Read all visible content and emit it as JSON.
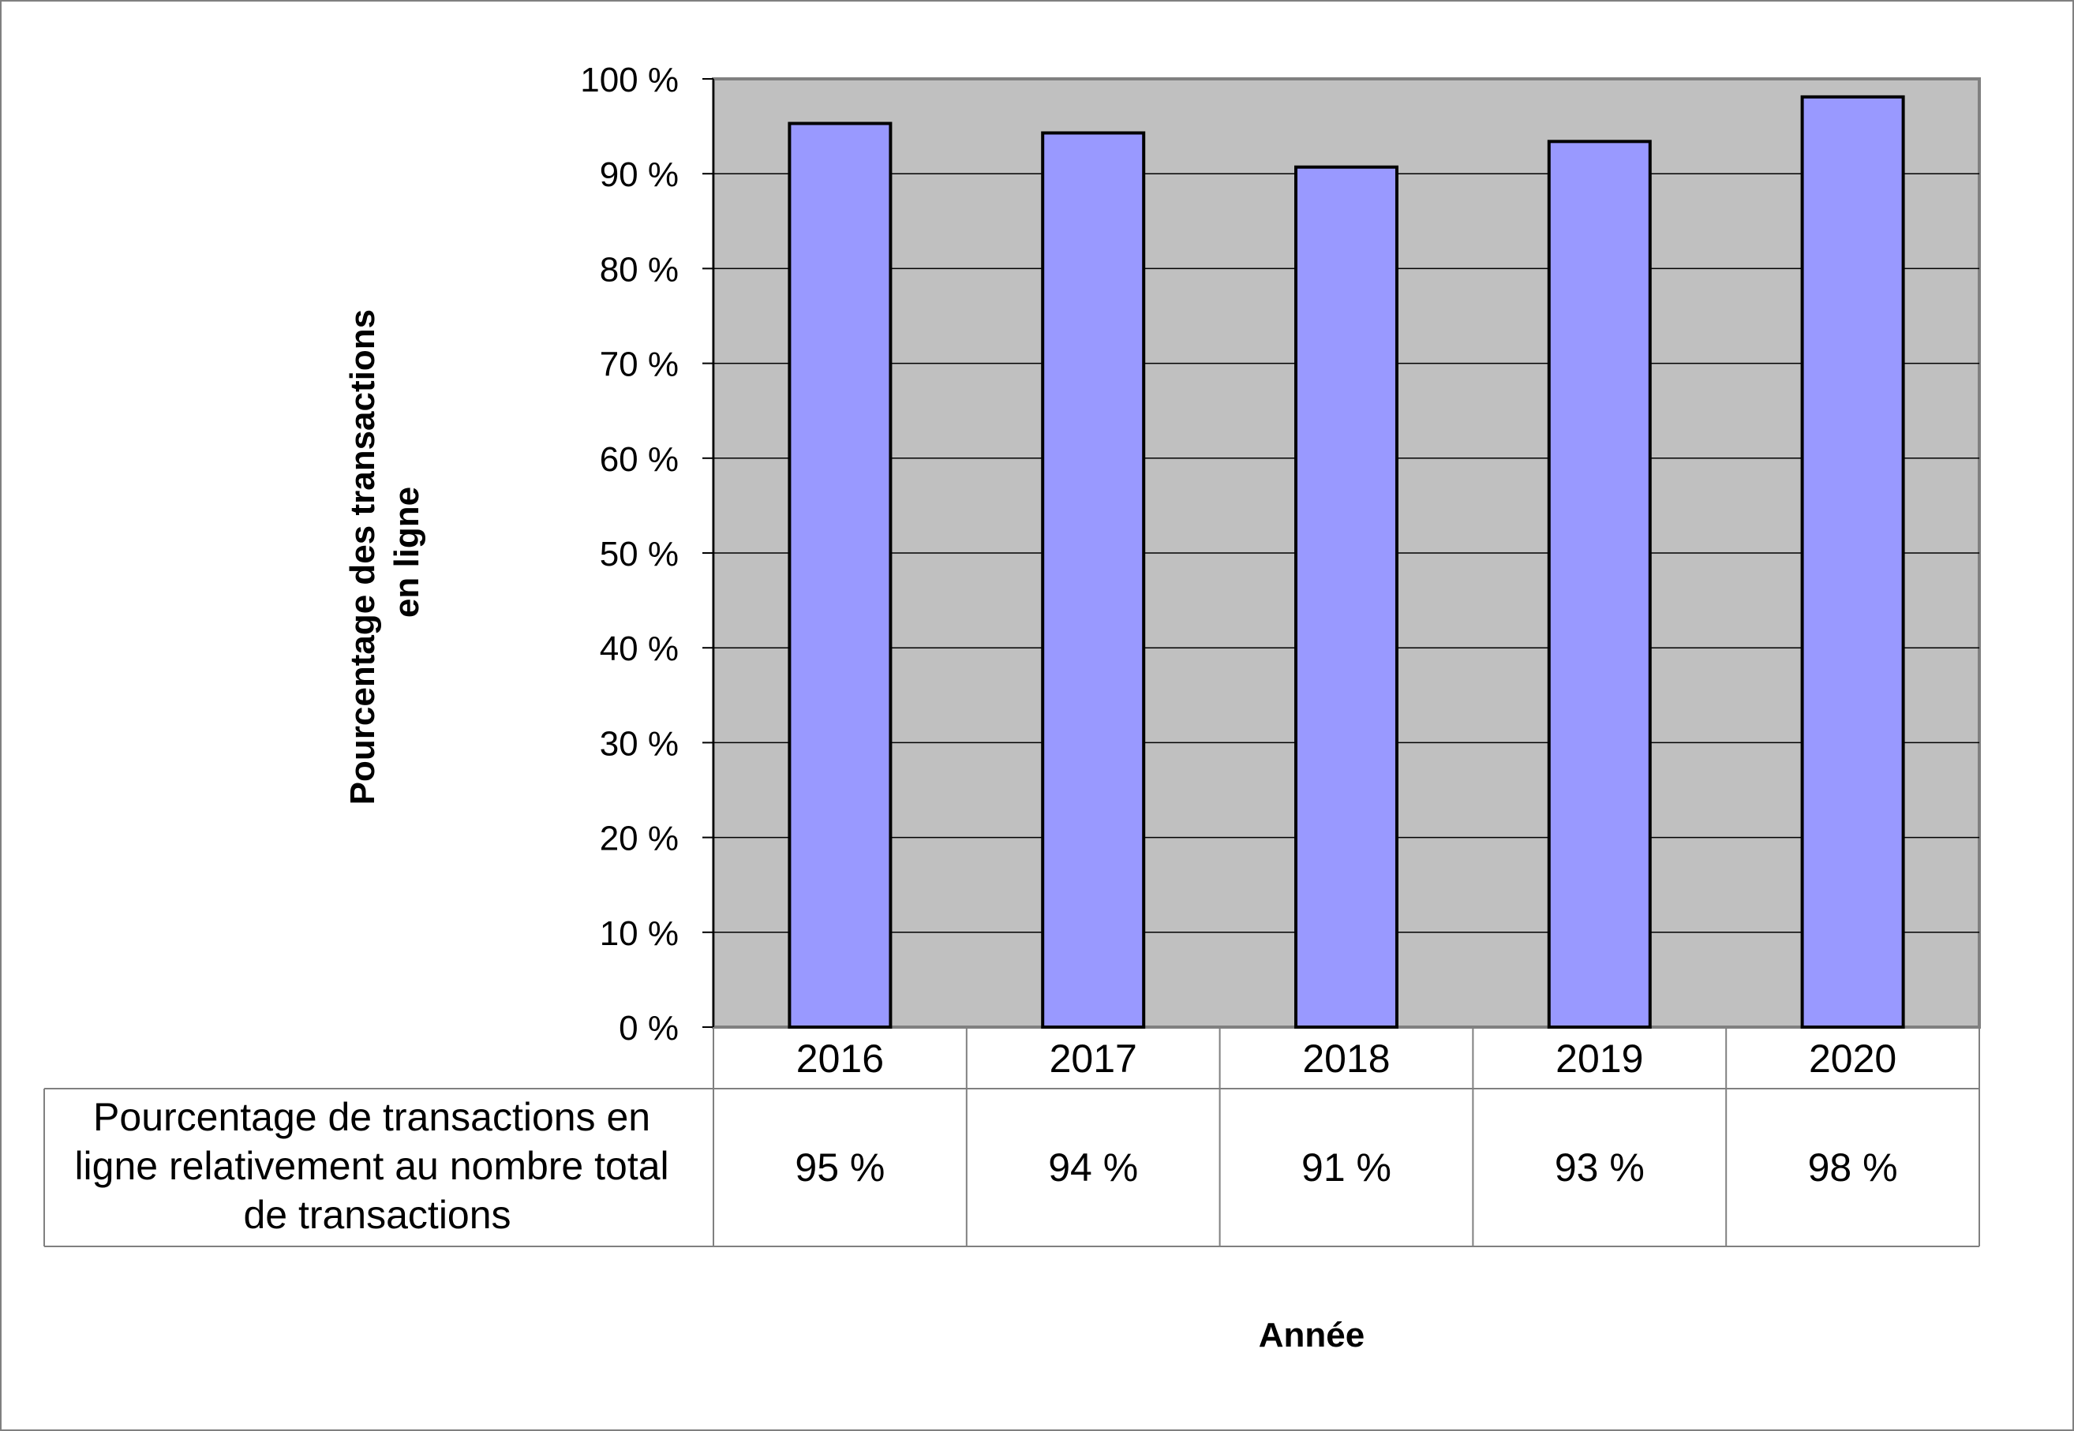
{
  "chart_data": {
    "type": "bar",
    "title": "",
    "categories": [
      "2016",
      "2017",
      "2018",
      "2019",
      "2020"
    ],
    "series": [
      {
        "name": "Pourcentage de transactions en ligne relativement au nombre total de transactions",
        "values": [
          95.3,
          94.3,
          90.7,
          93.4,
          98.1
        ]
      }
    ],
    "data_table": {
      "row_label_lines": [
        "Pourcentage de transactions en",
        "ligne relativement au nombre total",
        "de transactions"
      ],
      "cells": [
        "95 %",
        "94 %",
        "91 %",
        "93 %",
        "98 %"
      ]
    },
    "ylabel_lines": [
      "Pourcentage des transactions",
      "en ligne"
    ],
    "xlabel": "Année",
    "ylim": [
      0,
      100
    ],
    "yticks": [
      0,
      10,
      20,
      30,
      40,
      50,
      60,
      70,
      80,
      90,
      100
    ],
    "ytick_labels": [
      "0 %",
      "10 %",
      "20 %",
      "30 %",
      "40 %",
      "50 %",
      "60 %",
      "70 %",
      "80 %",
      "90 %",
      "100 %"
    ],
    "grid": true,
    "legend": "none",
    "colors": {
      "bar_fill": "#9999FF",
      "bar_stroke": "#000000",
      "plot_background": "#C0C0C0",
      "gridline": "#000000",
      "table_border": "#808080"
    }
  }
}
